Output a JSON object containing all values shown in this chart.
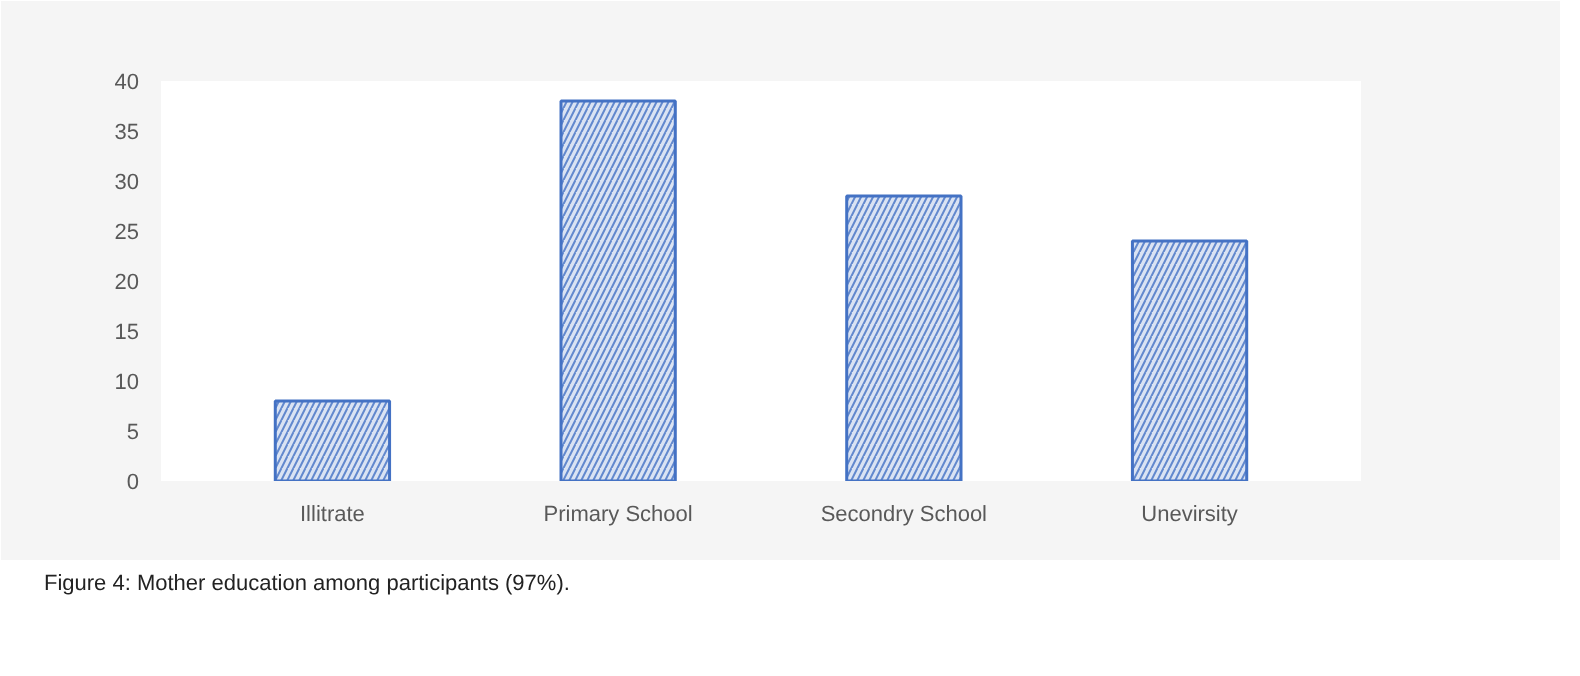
{
  "chart_data": {
    "type": "bar",
    "categories": [
      "Illitrate",
      "Primary School",
      "Secondry School",
      "Unevirsity"
    ],
    "values": [
      8,
      38,
      28.5,
      24
    ],
    "color": "#4472c4",
    "ylim": [
      0,
      40
    ],
    "yticks": [
      0,
      5,
      10,
      15,
      20,
      25,
      30,
      35,
      40
    ],
    "grid": false,
    "annotations": [
      "Figure 4: Mother education among participants (97%)."
    ]
  }
}
